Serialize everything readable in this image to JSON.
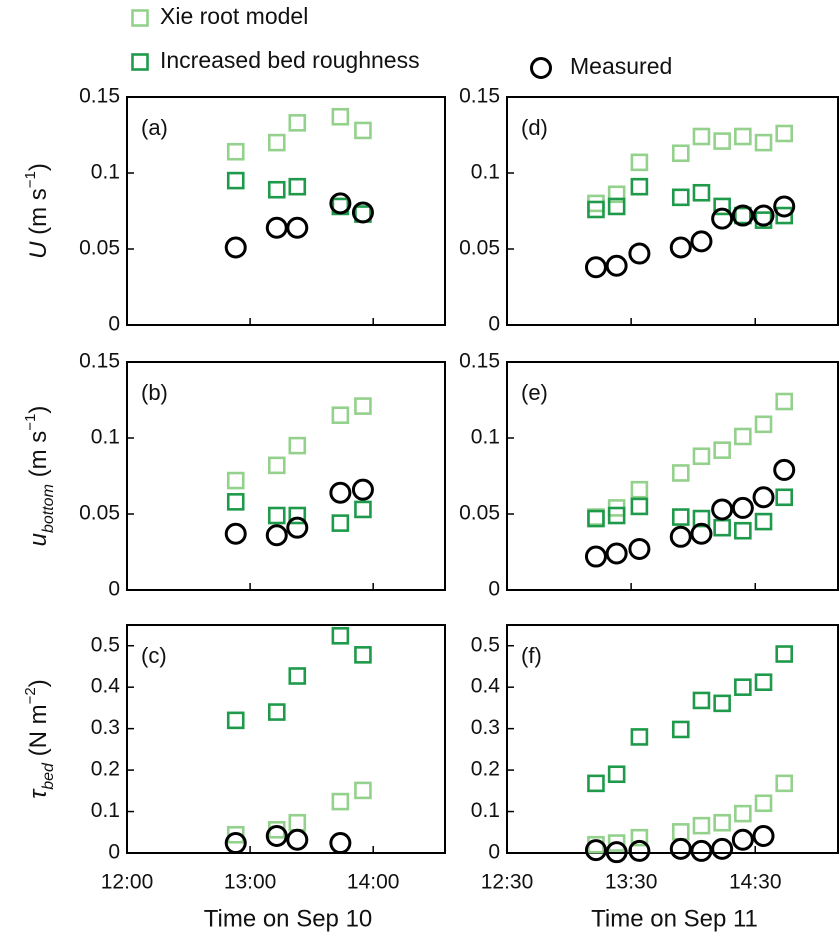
{
  "chart_data": [
    {
      "type": "scatter",
      "label": "(a)",
      "ylabel": [
        {
          "text": "U",
          "style": "italic"
        },
        {
          "text": " (m s"
        },
        {
          "text": "−1",
          "style": "sup"
        },
        {
          "text": ")"
        }
      ],
      "xlim": [
        "12:00",
        "14:35"
      ],
      "xticks": [
        "12:00",
        "13:00",
        "14:00"
      ],
      "show_xtick_labels": false,
      "ylim": [
        0,
        0.15
      ],
      "yticks": [
        0,
        0.05,
        0.1,
        0.15
      ],
      "x": [
        "12:53",
        "13:13",
        "13:23",
        "13:44",
        "13:55"
      ],
      "series": [
        {
          "name": "Xie root model",
          "color": "#93d18c",
          "marker": "square",
          "values": [
            0.114,
            0.12,
            0.133,
            0.137,
            0.128
          ]
        },
        {
          "name": "Increased bed roughness",
          "color": "#1f9a4b",
          "marker": "square",
          "values": [
            0.095,
            0.089,
            0.091,
            0.078,
            0.073
          ]
        },
        {
          "name": "Measured",
          "color": "#000000",
          "marker": "circle",
          "values": [
            0.051,
            0.064,
            0.064,
            0.08,
            0.074
          ]
        }
      ]
    },
    {
      "type": "scatter",
      "label": "(b)",
      "ylabel": [
        {
          "text": "u",
          "style": "italic"
        },
        {
          "text": "bottom",
          "style": "sub"
        },
        {
          "text": "  (m s"
        },
        {
          "text": "−1",
          "style": "sup"
        },
        {
          "text": ")"
        }
      ],
      "xlim": [
        "12:00",
        "14:35"
      ],
      "xticks": [
        "12:00",
        "13:00",
        "14:00"
      ],
      "show_xtick_labels": false,
      "ylim": [
        0,
        0.15
      ],
      "yticks": [
        0,
        0.05,
        0.1,
        0.15
      ],
      "x": [
        "12:53",
        "13:13",
        "13:23",
        "13:44",
        "13:55"
      ],
      "series": [
        {
          "color": "#93d18c",
          "marker": "square",
          "values": [
            0.072,
            0.082,
            0.095,
            0.115,
            0.121
          ]
        },
        {
          "color": "#1f9a4b",
          "marker": "square",
          "values": [
            0.058,
            0.049,
            0.049,
            0.044,
            0.053
          ]
        },
        {
          "color": "#000000",
          "marker": "circle",
          "values": [
            0.037,
            0.036,
            0.041,
            0.064,
            0.066
          ]
        }
      ]
    },
    {
      "type": "scatter",
      "label": "(c)",
      "ylabel": [
        {
          "text": "τ",
          "style": "italic"
        },
        {
          "text": "bed",
          "style": "sub"
        },
        {
          "text": " (N m"
        },
        {
          "text": "−2",
          "style": "sup"
        },
        {
          "text": ")"
        }
      ],
      "xlim": [
        "12:00",
        "14:35"
      ],
      "xticks": [
        "12:00",
        "13:00",
        "14:00"
      ],
      "show_xtick_labels": true,
      "xlabel": "Time on Sep 10",
      "ylim": [
        0,
        0.55
      ],
      "yticks": [
        0,
        0.1,
        0.2,
        0.3,
        0.4,
        0.5
      ],
      "x": [
        "12:53",
        "13:13",
        "13:23",
        "13:44",
        "13:55"
      ],
      "series": [
        {
          "color": "#93d18c",
          "marker": "square",
          "values": [
            0.044,
            0.056,
            0.073,
            0.124,
            0.151
          ]
        },
        {
          "color": "#1f9a4b",
          "marker": "square",
          "values": [
            0.32,
            0.34,
            0.427,
            0.524,
            0.478
          ]
        },
        {
          "color": "#000000",
          "marker": "circle",
          "values": [
            0.024,
            0.041,
            0.032,
            0.024,
            null
          ]
        }
      ]
    },
    {
      "type": "scatter",
      "label": "(d)",
      "xlim": [
        "12:30",
        "15:10"
      ],
      "xticks": [
        "12:30",
        "13:30",
        "14:30"
      ],
      "show_xtick_labels": false,
      "ylim": [
        0,
        0.15
      ],
      "yticks": [
        0,
        0.05,
        0.1,
        0.15
      ],
      "x": [
        "13:13",
        "13:23",
        "13:34",
        "13:54",
        "14:04",
        "14:14",
        "14:24",
        "14:34",
        "14:44"
      ],
      "series": [
        {
          "color": "#93d18c",
          "marker": "square",
          "values": [
            0.08,
            0.086,
            0.107,
            0.113,
            0.124,
            0.121,
            0.124,
            0.12,
            0.126
          ]
        },
        {
          "color": "#1f9a4b",
          "marker": "square",
          "values": [
            0.076,
            0.078,
            0.091,
            0.084,
            0.087,
            0.078,
            0.072,
            0.069,
            0.072
          ]
        },
        {
          "color": "#000000",
          "marker": "circle",
          "values": [
            0.038,
            0.039,
            0.047,
            0.051,
            0.055,
            0.07,
            0.072,
            0.072,
            0.078
          ]
        }
      ]
    },
    {
      "type": "scatter",
      "label": "(e)",
      "xlim": [
        "12:30",
        "15:10"
      ],
      "xticks": [
        "12:30",
        "13:30",
        "14:30"
      ],
      "show_xtick_labels": false,
      "ylim": [
        0,
        0.15
      ],
      "yticks": [
        0,
        0.05,
        0.1,
        0.15
      ],
      "x": [
        "13:13",
        "13:23",
        "13:34",
        "13:54",
        "14:04",
        "14:14",
        "14:24",
        "14:34",
        "14:44"
      ],
      "series": [
        {
          "color": "#93d18c",
          "marker": "square",
          "values": [
            0.048,
            0.054,
            0.066,
            0.077,
            0.088,
            0.092,
            0.101,
            0.109,
            0.124
          ]
        },
        {
          "color": "#1f9a4b",
          "marker": "square",
          "values": [
            0.047,
            0.049,
            0.055,
            0.048,
            0.047,
            0.041,
            0.039,
            0.045,
            0.061
          ]
        },
        {
          "color": "#000000",
          "marker": "circle",
          "values": [
            0.022,
            0.024,
            0.027,
            0.035,
            0.037,
            0.053,
            0.054,
            0.061,
            0.079
          ]
        }
      ]
    },
    {
      "type": "scatter",
      "label": "(f)",
      "xlim": [
        "12:30",
        "15:10"
      ],
      "xticks": [
        "12:30",
        "13:30",
        "14:30"
      ],
      "show_xtick_labels": true,
      "xlabel": "Time on Sep 11",
      "ylim": [
        0,
        0.55
      ],
      "yticks": [
        0,
        0.1,
        0.2,
        0.3,
        0.4,
        0.5
      ],
      "x": [
        "13:13",
        "13:23",
        "13:34",
        "13:54",
        "14:04",
        "14:14",
        "14:24",
        "14:34",
        "14:44"
      ],
      "series": [
        {
          "color": "#93d18c",
          "marker": "square",
          "values": [
            0.02,
            0.024,
            0.037,
            0.051,
            0.066,
            0.073,
            0.095,
            0.12,
            0.168
          ]
        },
        {
          "color": "#1f9a4b",
          "marker": "square",
          "values": [
            0.168,
            0.19,
            0.28,
            0.298,
            0.368,
            0.361,
            0.4,
            0.412,
            0.48
          ]
        },
        {
          "color": "#000000",
          "marker": "circle",
          "values": [
            0.007,
            0.002,
            0.005,
            0.01,
            0.005,
            0.01,
            0.032,
            0.041,
            null
          ]
        }
      ]
    }
  ]
}
